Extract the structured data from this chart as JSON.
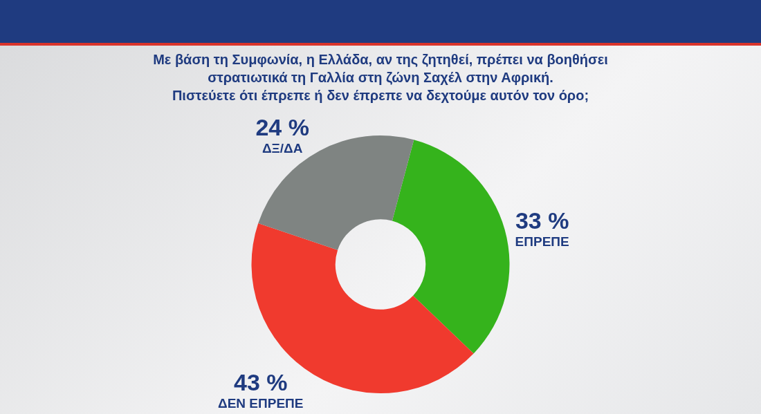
{
  "chart_data": {
    "type": "donut",
    "title": "Με βάση τη Συμφωνία, η Ελλάδα, αν της ζητηθεί, πρέπει να βοηθήσει\nστρατιωτικά τη Γαλλία στη ζώνη Σαχέλ στην Αφρική.\nΠιστεύετε ότι έπρεπε ή δεν έπρεπε να δεχτούμε αυτόν τον όρο;",
    "categories": [
      "ΕΠΡΕΠΕ",
      "ΔΕΝ ΕΠΡΕΠΕ",
      "ΔΞ/ΔΑ"
    ],
    "values": [
      33,
      43,
      24
    ],
    "colors": [
      "#35b31c",
      "#f03a2e",
      "#7f8482"
    ],
    "value_labels": [
      "33 %",
      "43 %",
      "24 %"
    ]
  }
}
